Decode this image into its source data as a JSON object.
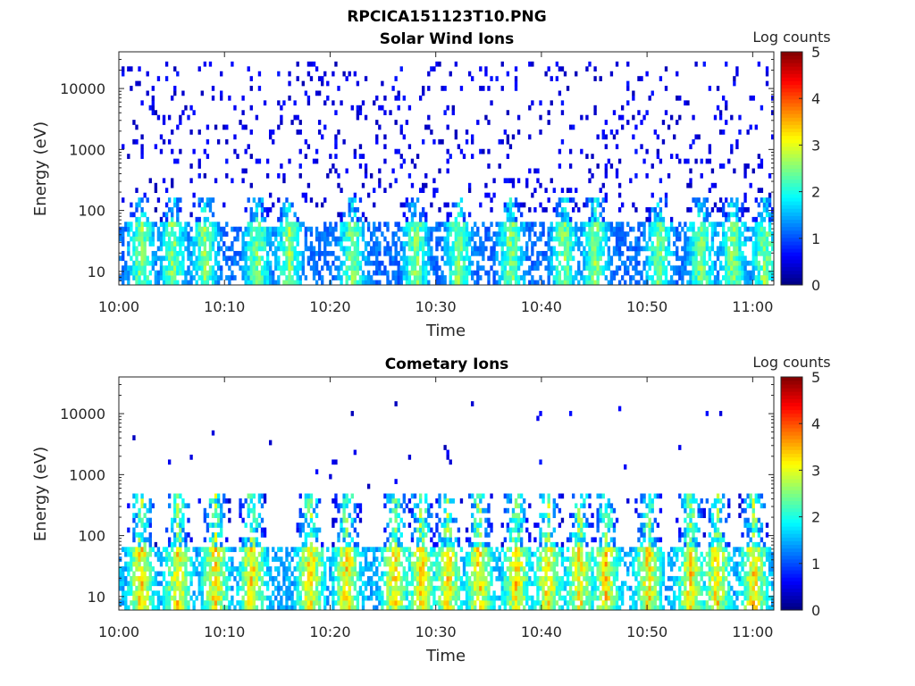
{
  "figure": {
    "title": "RPCICA151123T10.PNG"
  },
  "chart_data": [
    {
      "type": "heatmap",
      "title": "Solar Wind Ions",
      "xlabel": "Time",
      "ylabel": "Energy (eV)",
      "y_scale": "log",
      "x_range": [
        "10:00",
        "11:02"
      ],
      "y_range_eV": [
        6,
        40000
      ],
      "x_ticks": [
        "10:00",
        "10:10",
        "10:20",
        "10:30",
        "10:40",
        "10:50",
        "11:00"
      ],
      "y_ticks": [
        10,
        100,
        1000,
        10000
      ],
      "y_tick_labels": [
        "10",
        "100",
        "1000",
        "10000"
      ],
      "colorbar": {
        "label": "Log counts",
        "range": [
          0,
          5
        ],
        "ticks": [
          "0",
          "1",
          "2",
          "3",
          "4",
          "5"
        ],
        "colormap": "jet"
      },
      "description_values": {
        "main_band_energy_eV": [
          10,
          60
        ],
        "main_band_peak_log_counts": 3,
        "bursts_at_minutes": [
          2,
          5,
          8,
          13,
          16,
          22,
          28,
          32,
          37,
          42,
          45,
          51,
          55,
          58,
          61
        ],
        "burst_upper_energy_eV": 150,
        "sparse_background_energy_eV": [
          100,
          30000
        ],
        "sparse_background_log_counts": 0.5
      }
    },
    {
      "type": "heatmap",
      "title": "Cometary Ions",
      "xlabel": "Time",
      "ylabel": "Energy (eV)",
      "y_scale": "log",
      "x_range": [
        "10:00",
        "11:02"
      ],
      "y_range_eV": [
        6,
        40000
      ],
      "x_ticks": [
        "10:00",
        "10:10",
        "10:20",
        "10:30",
        "10:40",
        "10:50",
        "11:00"
      ],
      "y_ticks": [
        10,
        100,
        1000,
        10000
      ],
      "y_tick_labels": [
        "10",
        "100",
        "1000",
        "10000"
      ],
      "colorbar": {
        "label": "Log counts",
        "range": [
          0,
          5
        ],
        "ticks": [
          "0",
          "1",
          "2",
          "3",
          "4",
          "5"
        ],
        "colormap": "jet"
      },
      "description_values": {
        "main_band_energy_eV": [
          10,
          60
        ],
        "main_band_peak_log_counts": 3.8,
        "bursts_at_minutes": [
          2,
          5.5,
          9,
          12.5,
          18,
          21.5,
          26,
          28.5,
          31,
          34,
          37.5,
          40.5,
          43.5,
          46,
          50,
          54,
          56.5,
          60
        ],
        "burst_upper_energy_eV": 500,
        "sparse_background_energy_eV": [
          200,
          20000
        ],
        "sparse_background_log_counts": 0.5
      }
    }
  ]
}
